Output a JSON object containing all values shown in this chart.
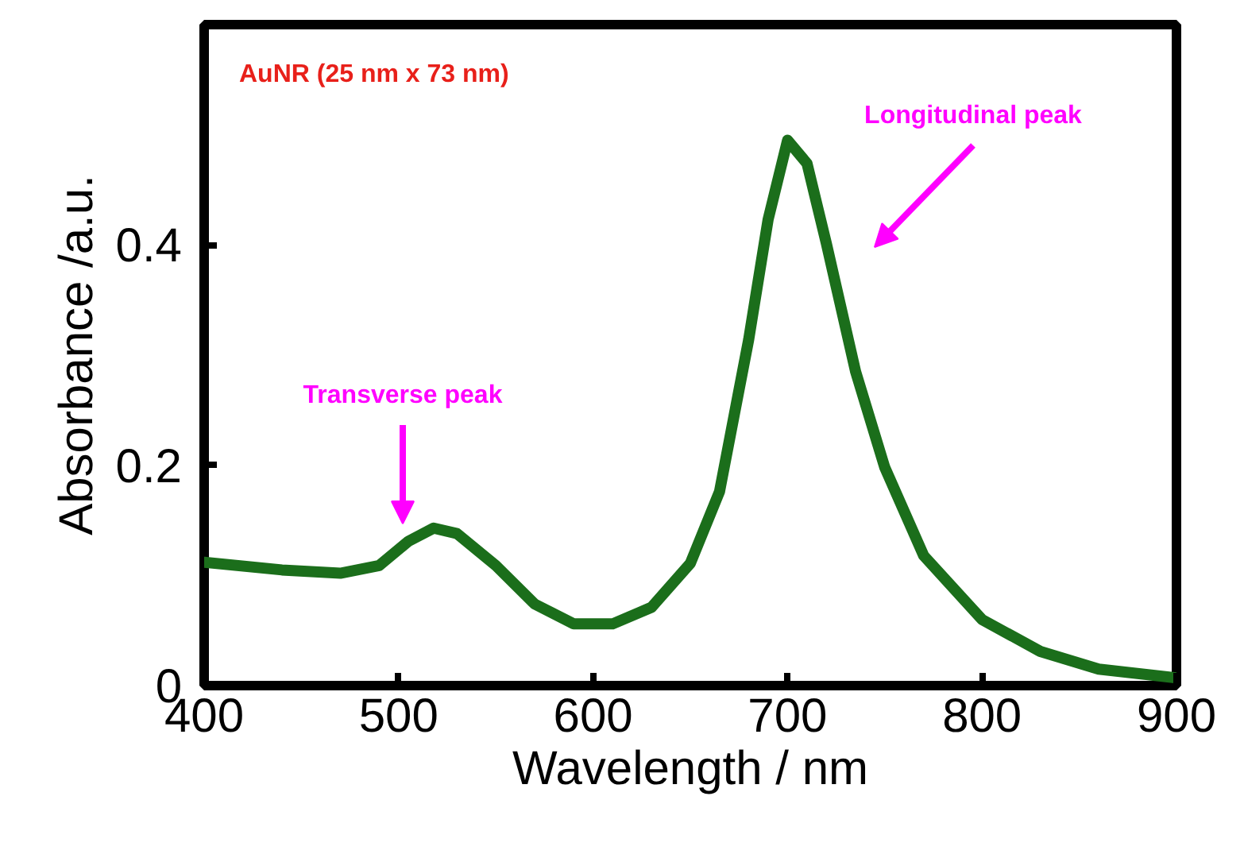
{
  "chart_data": {
    "type": "line",
    "xlabel": "Wavelength / nm",
    "ylabel": "Absorbance /a.u.",
    "x": [
      400,
      440,
      470,
      490,
      505,
      518,
      530,
      550,
      570,
      590,
      610,
      630,
      650,
      665,
      680,
      690,
      700,
      710,
      720,
      735,
      750,
      770,
      800,
      830,
      860,
      900
    ],
    "series": [
      {
        "color": "#1b6e1b",
        "values": [
          0.112,
          0.105,
          0.102,
          0.109,
          0.131,
          0.143,
          0.138,
          0.109,
          0.074,
          0.056,
          0.056,
          0.071,
          0.111,
          0.176,
          0.314,
          0.423,
          0.495,
          0.474,
          0.401,
          0.285,
          0.198,
          0.118,
          0.06,
          0.031,
          0.015,
          0.007
        ]
      }
    ],
    "xlim": [
      400,
      900
    ],
    "ylim": [
      0,
      0.6
    ],
    "xticks": [
      400,
      500,
      600,
      700,
      800,
      900
    ],
    "yticks": [
      0,
      {
        "value": 0.2,
        "label": "0.2"
      },
      {
        "value": 0.4,
        "label": "0.4"
      }
    ],
    "grid": false,
    "marker": "none",
    "line_style": "solid",
    "annotations": [
      "AuNR (25 nm x 73 nm)",
      "Transverse peak",
      "Longitudinal peak"
    ]
  }
}
